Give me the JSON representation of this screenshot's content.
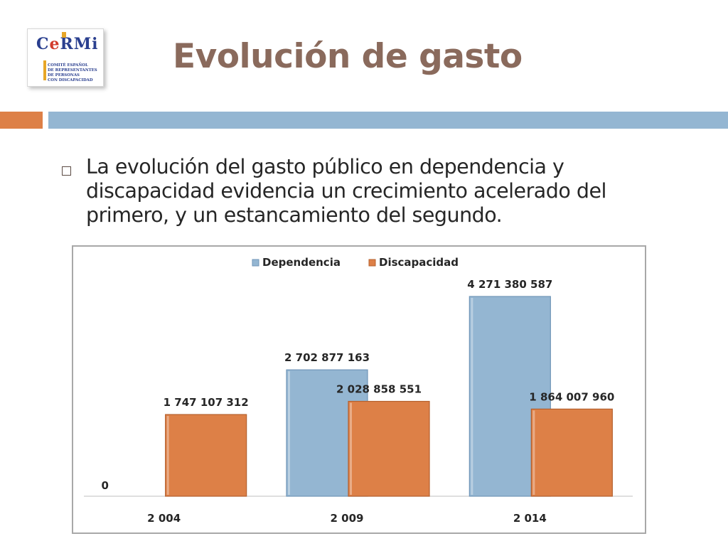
{
  "logo": {
    "word": "CeRMi",
    "lines": [
      "COMITÉ ESPAÑOL",
      "DE REPRESENTANTES",
      "DE PERSONAS",
      "CON DISCAPACIDAD"
    ]
  },
  "header": {
    "title": "Evolución de gasto"
  },
  "body": {
    "bullet_text": "La evolución del gasto público en dependencia y discapacidad evidencia un crecimiento acelerado del primero, y un estancamiento del segundo."
  },
  "colors": {
    "dependencia": "#94b6d2",
    "discapacidad": "#dd8047",
    "title": "#8a6a5c"
  },
  "chart_data": {
    "type": "bar",
    "categories": [
      "2 004",
      "2 009",
      "2 014"
    ],
    "series": [
      {
        "name": "Dependencia",
        "values": [
          0,
          2702877163,
          4271380587
        ],
        "labels": [
          "0",
          "2 702 877 163",
          "4 271 380 587"
        ]
      },
      {
        "name": "Discapacidad",
        "values": [
          1747107312,
          2028858551,
          1864007960
        ],
        "labels": [
          "1 747 107 312",
          "2 028 858 551",
          "1 864 007 960"
        ]
      }
    ],
    "legend": "top-center",
    "grid": false,
    "ylim": [
      0,
      4271380587
    ]
  }
}
